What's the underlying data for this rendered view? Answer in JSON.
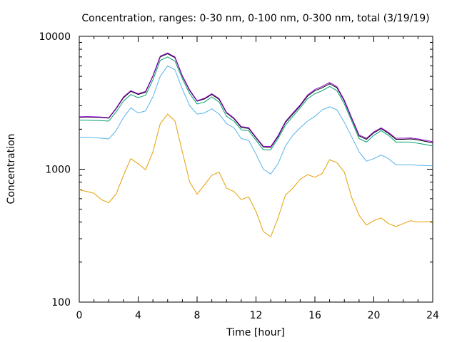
{
  "chart_data": {
    "type": "line",
    "title": "Concentration, ranges: 0-30 nm, 0-100 nm, 0-300 nm, total (3/19/19)",
    "xlabel": "Time [hour]",
    "ylabel": "Concentration",
    "xlim": [
      0,
      24
    ],
    "ylim": [
      100,
      10000
    ],
    "yscale": "log",
    "x_ticks": [
      0,
      4,
      8,
      12,
      16,
      20,
      24
    ],
    "x_tick_labels": [
      "0",
      "4",
      "8",
      "12",
      "16",
      "20",
      "24"
    ],
    "y_ticks": [
      100,
      1000,
      10000
    ],
    "y_tick_labels": [
      "100",
      "1000",
      "10000"
    ],
    "grid": false,
    "legend": "none",
    "series": [
      {
        "color": "#e69f00",
        "points": [
          [
            0,
            700
          ],
          [
            0.5,
            680
          ],
          [
            1,
            660
          ],
          [
            1.5,
            590
          ],
          [
            2,
            560
          ],
          [
            2.5,
            650
          ],
          [
            3,
            900
          ],
          [
            3.5,
            1200
          ],
          [
            4,
            1100
          ],
          [
            4.5,
            990
          ],
          [
            5,
            1350
          ],
          [
            5.5,
            2200
          ],
          [
            6,
            2600
          ],
          [
            6.5,
            2300
          ],
          [
            7,
            1350
          ],
          [
            7.5,
            800
          ],
          [
            8,
            650
          ],
          [
            8.5,
            760
          ],
          [
            9,
            900
          ],
          [
            9.5,
            950
          ],
          [
            10,
            720
          ],
          [
            10.5,
            680
          ],
          [
            11,
            590
          ],
          [
            11.5,
            620
          ],
          [
            12,
            480
          ],
          [
            12.5,
            340
          ],
          [
            13,
            310
          ],
          [
            13.5,
            430
          ],
          [
            14,
            640
          ],
          [
            14.5,
            720
          ],
          [
            15,
            840
          ],
          [
            15.5,
            910
          ],
          [
            16,
            870
          ],
          [
            16.5,
            930
          ],
          [
            17,
            1180
          ],
          [
            17.5,
            1120
          ],
          [
            18,
            950
          ],
          [
            18.5,
            610
          ],
          [
            19,
            450
          ],
          [
            19.5,
            380
          ],
          [
            20,
            410
          ],
          [
            20.5,
            430
          ],
          [
            21,
            390
          ],
          [
            21.5,
            370
          ],
          [
            22,
            390
          ],
          [
            22.5,
            410
          ],
          [
            23,
            400
          ],
          [
            24,
            405
          ]
        ]
      },
      {
        "color": "#56b4e9",
        "points": [
          [
            0,
            1740
          ],
          [
            0.5,
            1740
          ],
          [
            1,
            1730
          ],
          [
            1.5,
            1710
          ],
          [
            2,
            1690
          ],
          [
            2.5,
            1950
          ],
          [
            3,
            2450
          ],
          [
            3.5,
            2900
          ],
          [
            4,
            2650
          ],
          [
            4.5,
            2750
          ],
          [
            5,
            3500
          ],
          [
            5.5,
            5000
          ],
          [
            6,
            6000
          ],
          [
            6.5,
            5600
          ],
          [
            7,
            4000
          ],
          [
            7.5,
            3000
          ],
          [
            8,
            2600
          ],
          [
            8.5,
            2650
          ],
          [
            9,
            2850
          ],
          [
            9.5,
            2600
          ],
          [
            10,
            2200
          ],
          [
            10.5,
            2050
          ],
          [
            11,
            1700
          ],
          [
            11.5,
            1650
          ],
          [
            12,
            1300
          ],
          [
            12.5,
            1000
          ],
          [
            13,
            920
          ],
          [
            13.5,
            1100
          ],
          [
            14,
            1500
          ],
          [
            14.5,
            1800
          ],
          [
            15,
            2050
          ],
          [
            15.5,
            2300
          ],
          [
            16,
            2500
          ],
          [
            16.5,
            2800
          ],
          [
            17,
            2950
          ],
          [
            17.5,
            2800
          ],
          [
            18,
            2250
          ],
          [
            18.5,
            1750
          ],
          [
            19,
            1350
          ],
          [
            19.5,
            1150
          ],
          [
            20,
            1200
          ],
          [
            20.5,
            1280
          ],
          [
            21,
            1200
          ],
          [
            21.5,
            1080
          ],
          [
            22,
            1080
          ],
          [
            22.5,
            1080
          ],
          [
            23,
            1070
          ],
          [
            24,
            1060
          ]
        ]
      },
      {
        "color": "#009e73",
        "points": [
          [
            0,
            2340
          ],
          [
            0.5,
            2340
          ],
          [
            1,
            2330
          ],
          [
            1.5,
            2320
          ],
          [
            2,
            2300
          ],
          [
            2.5,
            2700
          ],
          [
            3,
            3250
          ],
          [
            3.5,
            3650
          ],
          [
            4,
            3450
          ],
          [
            4.5,
            3600
          ],
          [
            5,
            4700
          ],
          [
            5.5,
            6600
          ],
          [
            6,
            7000
          ],
          [
            6.5,
            6500
          ],
          [
            7,
            4800
          ],
          [
            7.5,
            3700
          ],
          [
            8,
            3100
          ],
          [
            8.5,
            3200
          ],
          [
            9,
            3500
          ],
          [
            9.5,
            3200
          ],
          [
            10,
            2500
          ],
          [
            10.5,
            2300
          ],
          [
            11,
            1980
          ],
          [
            11.5,
            1950
          ],
          [
            12,
            1650
          ],
          [
            12.5,
            1400
          ],
          [
            13,
            1400
          ],
          [
            13.5,
            1700
          ],
          [
            14,
            2150
          ],
          [
            14.5,
            2500
          ],
          [
            15,
            2900
          ],
          [
            15.5,
            3400
          ],
          [
            16,
            3700
          ],
          [
            16.5,
            3900
          ],
          [
            17,
            4200
          ],
          [
            17.5,
            3900
          ],
          [
            18,
            3100
          ],
          [
            18.5,
            2300
          ],
          [
            19,
            1700
          ],
          [
            19.5,
            1600
          ],
          [
            20,
            1800
          ],
          [
            20.5,
            1950
          ],
          [
            21,
            1800
          ],
          [
            21.5,
            1600
          ],
          [
            22,
            1600
          ],
          [
            22.5,
            1600
          ],
          [
            23,
            1570
          ],
          [
            24,
            1500
          ]
        ]
      },
      {
        "color": "#000000",
        "points": [
          [
            0,
            2460
          ],
          [
            0.5,
            2470
          ],
          [
            1,
            2460
          ],
          [
            1.5,
            2450
          ],
          [
            2,
            2420
          ],
          [
            2.5,
            2850
          ],
          [
            3,
            3450
          ],
          [
            3.5,
            3850
          ],
          [
            4,
            3650
          ],
          [
            4.5,
            3800
          ],
          [
            5,
            5000
          ],
          [
            5.5,
            7000
          ],
          [
            6,
            7400
          ],
          [
            6.5,
            6900
          ],
          [
            7,
            5000
          ],
          [
            7.5,
            3900
          ],
          [
            8,
            3250
          ],
          [
            8.5,
            3380
          ],
          [
            9,
            3650
          ],
          [
            9.5,
            3350
          ],
          [
            10,
            2650
          ],
          [
            10.5,
            2400
          ],
          [
            11,
            2060
          ],
          [
            11.5,
            2030
          ],
          [
            12,
            1720
          ],
          [
            12.5,
            1470
          ],
          [
            13,
            1460
          ],
          [
            13.5,
            1760
          ],
          [
            14,
            2250
          ],
          [
            14.5,
            2600
          ],
          [
            15,
            3000
          ],
          [
            15.5,
            3550
          ],
          [
            16,
            3900
          ],
          [
            16.5,
            4100
          ],
          [
            17,
            4400
          ],
          [
            17.5,
            4100
          ],
          [
            18,
            3250
          ],
          [
            18.5,
            2400
          ],
          [
            19,
            1780
          ],
          [
            19.5,
            1680
          ],
          [
            20,
            1880
          ],
          [
            20.5,
            2020
          ],
          [
            21,
            1860
          ],
          [
            21.5,
            1680
          ],
          [
            22,
            1680
          ],
          [
            22.5,
            1690
          ],
          [
            23,
            1660
          ],
          [
            24,
            1580
          ]
        ]
      },
      {
        "color": "#9400d3",
        "points": [
          [
            0,
            2480
          ],
          [
            0.5,
            2490
          ],
          [
            1,
            2480
          ],
          [
            1.5,
            2470
          ],
          [
            2,
            2440
          ],
          [
            2.5,
            2880
          ],
          [
            3,
            3500
          ],
          [
            3.5,
            3900
          ],
          [
            4,
            3700
          ],
          [
            4.5,
            3850
          ],
          [
            5,
            5050
          ],
          [
            5.5,
            7100
          ],
          [
            6,
            7500
          ],
          [
            6.5,
            7000
          ],
          [
            7,
            5050
          ],
          [
            7.5,
            3950
          ],
          [
            8,
            3280
          ],
          [
            8.5,
            3420
          ],
          [
            9,
            3700
          ],
          [
            9.5,
            3400
          ],
          [
            10,
            2680
          ],
          [
            10.5,
            2430
          ],
          [
            11,
            2090
          ],
          [
            11.5,
            2060
          ],
          [
            12,
            1740
          ],
          [
            12.5,
            1490
          ],
          [
            13,
            1480
          ],
          [
            13.5,
            1790
          ],
          [
            14,
            2290
          ],
          [
            14.5,
            2650
          ],
          [
            15,
            3050
          ],
          [
            15.5,
            3620
          ],
          [
            16,
            3980
          ],
          [
            16.5,
            4200
          ],
          [
            17,
            4500
          ],
          [
            17.5,
            4180
          ],
          [
            18,
            3310
          ],
          [
            18.5,
            2440
          ],
          [
            19,
            1810
          ],
          [
            19.5,
            1710
          ],
          [
            20,
            1910
          ],
          [
            20.5,
            2050
          ],
          [
            21,
            1890
          ],
          [
            21.5,
            1710
          ],
          [
            22,
            1710
          ],
          [
            22.5,
            1720
          ],
          [
            23,
            1690
          ],
          [
            24,
            1610
          ]
        ]
      }
    ]
  }
}
